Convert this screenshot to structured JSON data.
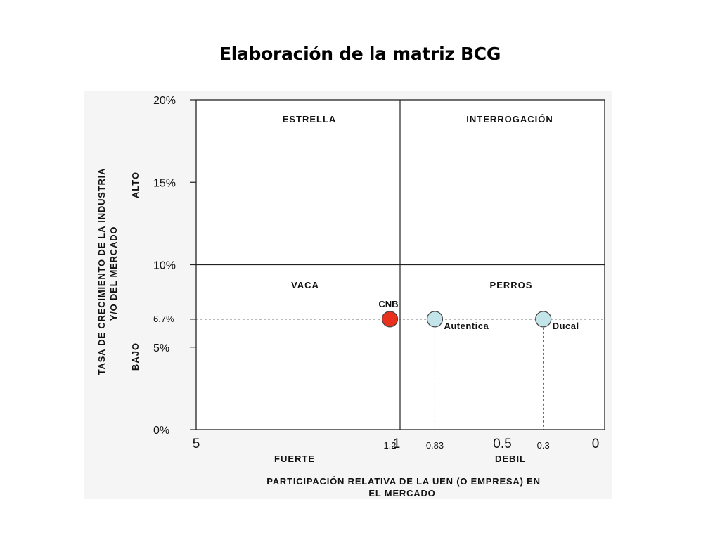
{
  "slide": {
    "title": "Elaboración de la matriz BCG"
  },
  "chart_data": {
    "type": "scatter",
    "title": "",
    "xlabel": "PARTICIPACIÓN RELATIVA DE LA UEN (O EMPRESA) EN EL MERCADO",
    "xlabel_lines": [
      "PARTICIPACIÓN RELATIVA DE LA UEN (O EMPRESA) EN",
      "EL MERCADO"
    ],
    "ylabel_lines": [
      "TASA DE CRECIMIENTO DE LA INDUSTRIA",
      "Y/O DEL MERCADO"
    ],
    "x_axis_reversed": true,
    "x_ticks": [
      {
        "value": 5,
        "label": "5"
      },
      {
        "value": 1.2,
        "label": "1.2"
      },
      {
        "value": 1,
        "label": "1"
      },
      {
        "value": 0.83,
        "label": "0.83"
      },
      {
        "value": 0.5,
        "label": "0.5"
      },
      {
        "value": 0.3,
        "label": "0.3"
      },
      {
        "value": 0,
        "label": "0"
      }
    ],
    "x_groups": [
      "FUERTE",
      "DEBIL"
    ],
    "y_ticks": [
      {
        "value": 20,
        "label": "20%"
      },
      {
        "value": 15,
        "label": "15%"
      },
      {
        "value": 10,
        "label": "10%"
      },
      {
        "value": 6.7,
        "label": "6.7%"
      },
      {
        "value": 5,
        "label": "5%"
      },
      {
        "value": 0,
        "label": "0%"
      }
    ],
    "y_groups": [
      "ALTO",
      "BAJO"
    ],
    "ylim": [
      0,
      20
    ],
    "quadrants": [
      "ESTRELLA",
      "INTERROGACIÓN",
      "VACA",
      "PERROS"
    ],
    "points": [
      {
        "name": "CNB",
        "x": 1.2,
        "y": 6.7,
        "color": "#e8301c"
      },
      {
        "name": "Autentica",
        "x": 0.83,
        "y": 6.7,
        "color": "#c3e4e8"
      },
      {
        "name": "Ducal",
        "x": 0.3,
        "y": 6.7,
        "color": "#c3e4e8"
      }
    ]
  }
}
